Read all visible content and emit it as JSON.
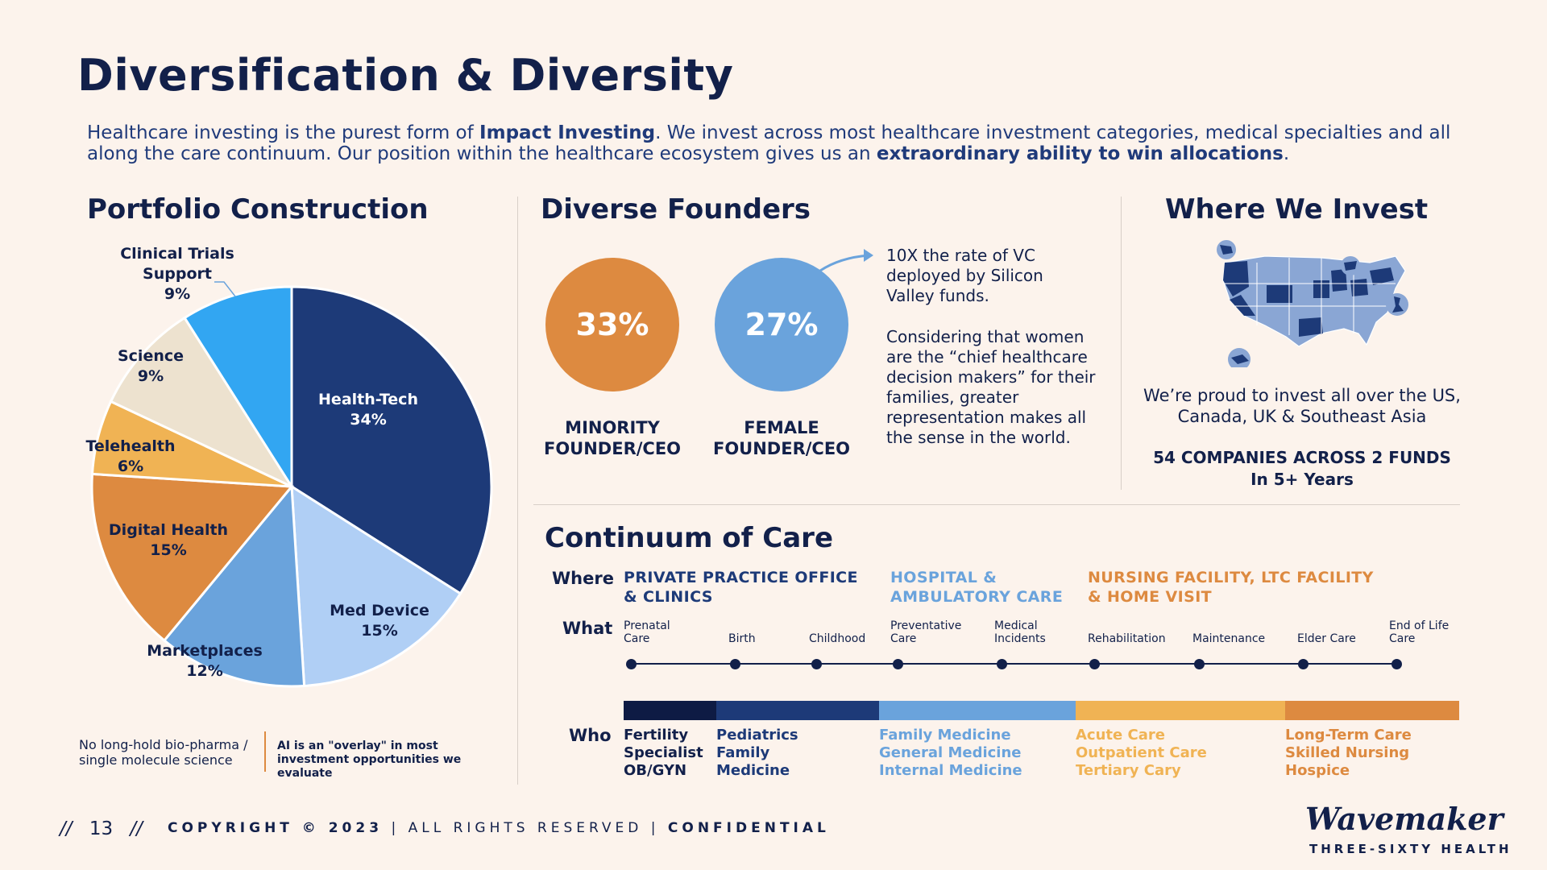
{
  "title": "Diversification & Diversity",
  "intro": {
    "p1": "Healthcare investing is the purest form of ",
    "b1": "Impact Investing",
    "p2": ". We invest across most healthcare investment categories, medical specialties and all along the care continuum. Our position within the healthcare ecosystem gives us an ",
    "b2": "extraordinary ability to win allocations",
    "p3": "."
  },
  "portfolio": {
    "heading": "Portfolio Construction",
    "footnote_left": "No long-hold bio-pharma / single molecule science",
    "footnote_right": "AI is an \"overlay\" in most investment opportunities we evaluate"
  },
  "chart_data": {
    "type": "pie",
    "title": "Portfolio Construction",
    "slices": [
      {
        "label": "Health-Tech",
        "value": 34,
        "pct_label": "34%",
        "color": "#1d3a78"
      },
      {
        "label": "Med Device",
        "value": 15,
        "pct_label": "15%",
        "color": "#b0cff5"
      },
      {
        "label": "Marketplaces",
        "value": 12,
        "pct_label": "12%",
        "color": "#6aa3dc"
      },
      {
        "label": "Digital Health",
        "value": 15,
        "pct_label": "15%",
        "color": "#dd8a40"
      },
      {
        "label": "Telehealth",
        "value": 6,
        "pct_label": "6%",
        "color": "#f0b354"
      },
      {
        "label": "Science",
        "value": 9,
        "pct_label": "9%",
        "color": "#ede2cf"
      },
      {
        "label": "Clinical Trials Support",
        "value": 9,
        "pct_label": "9%",
        "color": "#32a6f2"
      }
    ]
  },
  "founders": {
    "heading": "Diverse Founders",
    "minority_pct": "33%",
    "minority_label_1": "MINORITY",
    "minority_label_2": "FOUNDER/CEO",
    "female_pct": "27%",
    "female_label_1": "FEMALE",
    "female_label_2": "FOUNDER/CEO",
    "note1": "10X the rate of VC deployed by Silicon Valley funds.",
    "note2": "Considering that women are the “chief healthcare decision makers” for their families, greater representation makes all the sense in the world.",
    "colors": {
      "minority": "#dd8a40",
      "female": "#6aa3dc"
    }
  },
  "where_invest": {
    "heading": "Where We Invest",
    "text": "We’re proud to invest all over the US, Canada, UK & Southeast Asia",
    "bold_1": "54 COMPANIES ACROSS 2 FUNDS",
    "bold_2": "In 5+ Years"
  },
  "continuum": {
    "heading": "Continuum of Care",
    "where_label": "Where",
    "what_label": "What",
    "who_label": "Who",
    "locations": [
      {
        "line1": "PRIVATE PRACTICE OFFICE",
        "line2": "& CLINICS",
        "color": "#1d3a78"
      },
      {
        "line1": "HOSPITAL &",
        "line2": "AMBULATORY CARE",
        "color": "#6aa3dc"
      },
      {
        "line1": "NURSING FACILITY, LTC FACILITY",
        "line2": "& HOME VISIT",
        "color": "#dd8a40"
      }
    ],
    "what_items": [
      {
        "line1": "Prenatal",
        "line2": "Care"
      },
      {
        "line1": "",
        "line2": "Birth"
      },
      {
        "line1": "",
        "line2": "Childhood"
      },
      {
        "line1": "Preventative",
        "line2": "Care"
      },
      {
        "line1": "Medical",
        "line2": "Incidents"
      },
      {
        "line1": "",
        "line2": "Rehabilitation"
      },
      {
        "line1": "",
        "line2": "Maintenance"
      },
      {
        "line1": "",
        "line2": "Elder Care"
      },
      {
        "line1": "End of Life",
        "line2": "Care"
      }
    ],
    "bar_colors": [
      "#0e1b44",
      "#1d3a78",
      "#6aa3dc",
      "#f0b354",
      "#dd8a40"
    ],
    "who_groups": [
      {
        "lines": [
          "Fertility",
          "Specialist",
          "OB/GYN"
        ],
        "color": "#12204a"
      },
      {
        "lines": [
          "Pediatrics",
          "Family",
          "Medicine"
        ],
        "color": "#1d3a78"
      },
      {
        "lines": [
          "Family Medicine",
          "General Medicine",
          "Internal Medicine"
        ],
        "color": "#6aa3dc"
      },
      {
        "lines": [
          "Acute Care",
          "Outpatient Care",
          "Tertiary Cary"
        ],
        "color": "#f0b354"
      },
      {
        "lines": [
          "Long-Term Care",
          "Skilled Nursing",
          "Hospice"
        ],
        "color": "#dd8a40"
      }
    ]
  },
  "footer": {
    "page_prefix": "//",
    "page_number": "13",
    "page_suffix": "//",
    "copyright": "COPYRIGHT © 2023",
    "sep1": "|",
    "rights": "ALL RIGHTS RESERVED",
    "sep2": "|",
    "confidential": "CONFIDENTIAL"
  },
  "logo": {
    "name": "Wavemaker",
    "sub": "THREE-SIXTY HEALTH"
  }
}
